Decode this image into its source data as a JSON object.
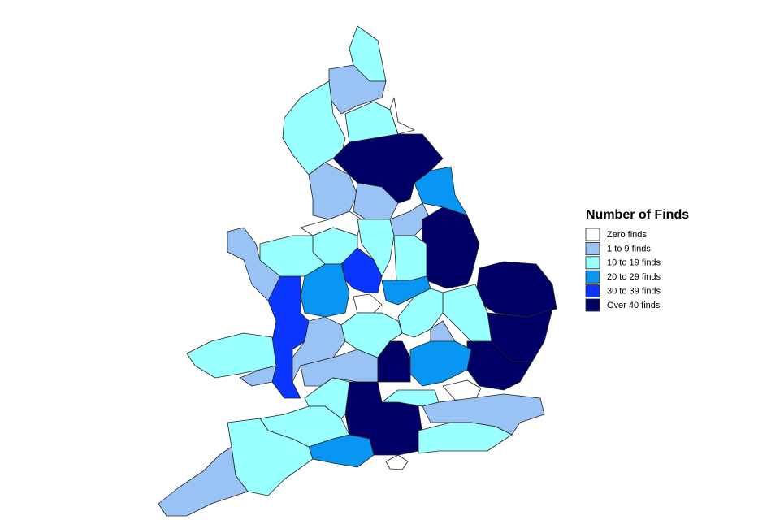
{
  "legend": {
    "title": "Number of Finds",
    "entries": [
      {
        "label": "Zero finds",
        "color": "#ffffff"
      },
      {
        "label": "1 to 9 finds",
        "color": "#99c2f5"
      },
      {
        "label": "10 to 19 finds",
        "color": "#99ffff"
      },
      {
        "label": "20 to 29 finds",
        "color": "#0996f2"
      },
      {
        "label": "30 to 39 finds",
        "color": "#0a35ff"
      },
      {
        "label": "Over 40 finds",
        "color": "#000066"
      }
    ]
  }
}
